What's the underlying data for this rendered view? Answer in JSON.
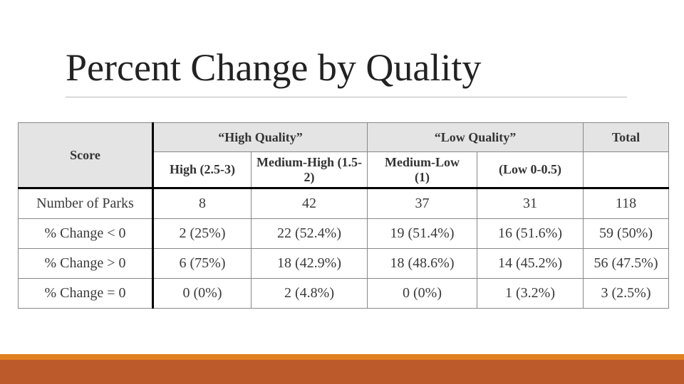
{
  "title": "Percent Change by Quality",
  "table": {
    "corner": "Score",
    "groups": [
      "“High Quality”",
      "“Low Quality”",
      "Total"
    ],
    "subheaders": [
      "High (2.5-3)",
      "Medium-High (1.5-2)",
      "Medium-Low (1)",
      "(Low 0-0.5)"
    ],
    "rows": [
      [
        "Number of Parks",
        "8",
        "42",
        "37",
        "31",
        "118"
      ],
      [
        "% Change < 0",
        "2 (25%)",
        "22 (52.4%)",
        "19 (51.4%)",
        "16 (51.6%)",
        "59 (50%)"
      ],
      [
        "% Change > 0",
        "6 (75%)",
        "18 (42.9%)",
        "18 (48.6%)",
        "14 (45.2%)",
        "56 (47.5%)"
      ],
      [
        "% Change = 0",
        "0 (0%)",
        "2 (4.8%)",
        "0 (0%)",
        "1 (3.2%)",
        "3 (2.5%)"
      ]
    ]
  }
}
